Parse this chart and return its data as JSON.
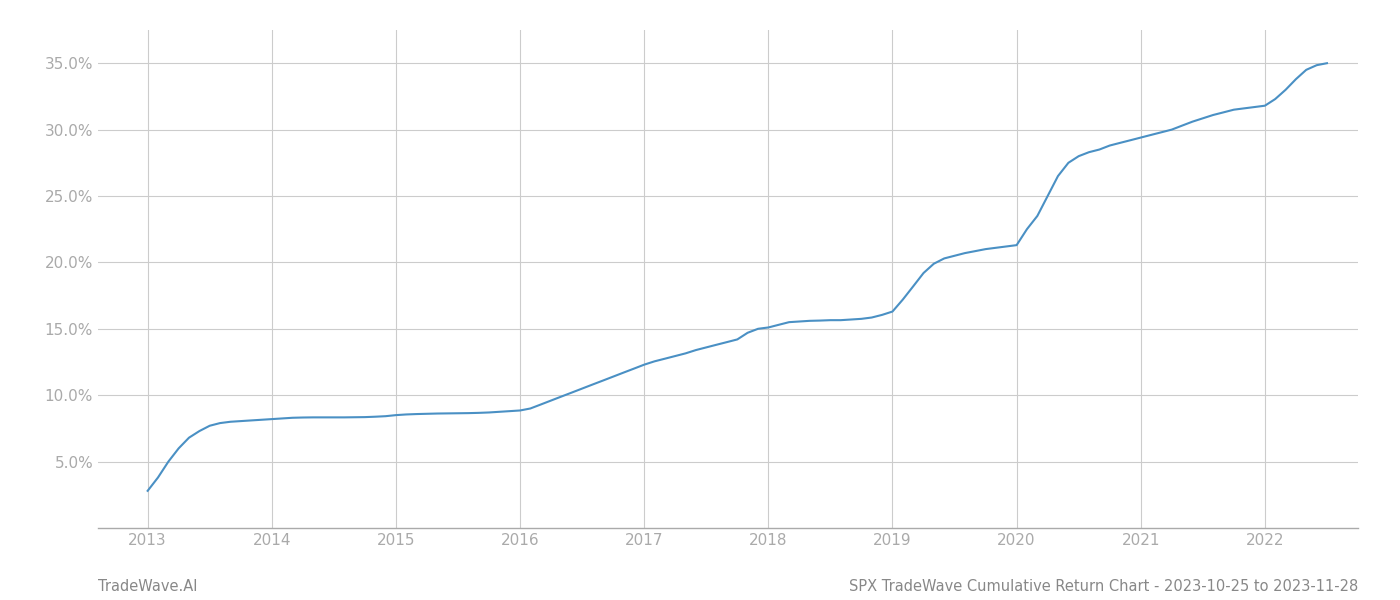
{
  "title": "SPX TradeWave Cumulative Return Chart - 2023-10-25 to 2023-11-28",
  "watermark": "TradeWave.AI",
  "x_years": [
    2013,
    2014,
    2015,
    2016,
    2017,
    2018,
    2019,
    2020,
    2021,
    2022
  ],
  "x_values": [
    2013.0,
    2013.083,
    2013.167,
    2013.25,
    2013.333,
    2013.417,
    2013.5,
    2013.583,
    2013.667,
    2013.75,
    2013.833,
    2013.917,
    2014.0,
    2014.083,
    2014.167,
    2014.25,
    2014.333,
    2014.417,
    2014.5,
    2014.583,
    2014.667,
    2014.75,
    2014.833,
    2014.917,
    2015.0,
    2015.083,
    2015.167,
    2015.25,
    2015.333,
    2015.417,
    2015.5,
    2015.583,
    2015.667,
    2015.75,
    2015.833,
    2015.917,
    2016.0,
    2016.083,
    2016.167,
    2016.25,
    2016.333,
    2016.417,
    2016.5,
    2016.583,
    2016.667,
    2016.75,
    2016.833,
    2016.917,
    2017.0,
    2017.083,
    2017.167,
    2017.25,
    2017.333,
    2017.417,
    2017.5,
    2017.583,
    2017.667,
    2017.75,
    2017.833,
    2017.917,
    2018.0,
    2018.083,
    2018.167,
    2018.25,
    2018.333,
    2018.417,
    2018.5,
    2018.583,
    2018.667,
    2018.75,
    2018.833,
    2018.917,
    2019.0,
    2019.083,
    2019.167,
    2019.25,
    2019.333,
    2019.417,
    2019.5,
    2019.583,
    2019.667,
    2019.75,
    2019.833,
    2019.917,
    2020.0,
    2020.083,
    2020.167,
    2020.25,
    2020.333,
    2020.417,
    2020.5,
    2020.583,
    2020.667,
    2020.75,
    2020.833,
    2020.917,
    2021.0,
    2021.083,
    2021.167,
    2021.25,
    2021.333,
    2021.417,
    2021.5,
    2021.583,
    2021.667,
    2021.75,
    2021.833,
    2021.917,
    2022.0,
    2022.083,
    2022.167,
    2022.25,
    2022.333,
    2022.417,
    2022.5
  ],
  "y_values": [
    2.8,
    3.8,
    5.0,
    6.0,
    6.8,
    7.3,
    7.7,
    7.9,
    8.0,
    8.05,
    8.1,
    8.15,
    8.2,
    8.25,
    8.3,
    8.32,
    8.33,
    8.33,
    8.33,
    8.33,
    8.34,
    8.35,
    8.38,
    8.42,
    8.5,
    8.55,
    8.58,
    8.6,
    8.62,
    8.63,
    8.64,
    8.65,
    8.67,
    8.7,
    8.75,
    8.8,
    8.85,
    9.0,
    9.3,
    9.6,
    9.9,
    10.2,
    10.5,
    10.8,
    11.1,
    11.4,
    11.7,
    12.0,
    12.3,
    12.55,
    12.75,
    12.95,
    13.15,
    13.4,
    13.6,
    13.8,
    14.0,
    14.2,
    14.7,
    15.0,
    15.1,
    15.3,
    15.5,
    15.55,
    15.6,
    15.62,
    15.65,
    15.65,
    15.7,
    15.75,
    15.85,
    16.05,
    16.3,
    17.2,
    18.2,
    19.2,
    19.9,
    20.3,
    20.5,
    20.7,
    20.85,
    21.0,
    21.1,
    21.2,
    21.3,
    22.5,
    23.5,
    25.0,
    26.5,
    27.5,
    28.0,
    28.3,
    28.5,
    28.8,
    29.0,
    29.2,
    29.4,
    29.6,
    29.8,
    30.0,
    30.3,
    30.6,
    30.85,
    31.1,
    31.3,
    31.5,
    31.6,
    31.7,
    31.8,
    32.3,
    33.0,
    33.8,
    34.5,
    34.85,
    35.0
  ],
  "ylim_min": 0,
  "ylim_max": 37.5,
  "yticks": [
    5.0,
    10.0,
    15.0,
    20.0,
    25.0,
    30.0,
    35.0
  ],
  "xlim_min": 2012.6,
  "xlim_max": 2022.75,
  "line_color": "#4a90c4",
  "line_width": 1.5,
  "grid_color": "#cccccc",
  "bg_color": "#ffffff",
  "title_fontsize": 10.5,
  "watermark_fontsize": 10.5,
  "title_color": "#888888",
  "watermark_color": "#888888",
  "tick_color": "#aaaaaa",
  "tick_fontsize": 11
}
